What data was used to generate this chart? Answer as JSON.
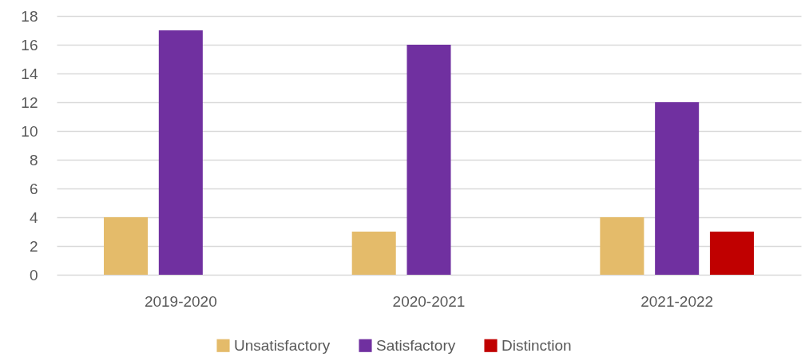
{
  "chart_data": {
    "type": "bar",
    "categories": [
      "2019-2020",
      "2020-2021",
      "2021-2022"
    ],
    "series": [
      {
        "name": "Unsatisfactory",
        "color": "#e4bb6a",
        "values": [
          4,
          3,
          4
        ]
      },
      {
        "name": "Satisfactory",
        "color": "#7030a0",
        "values": [
          17,
          16,
          12
        ]
      },
      {
        "name": "Distinction",
        "color": "#c00000",
        "values": [
          null,
          null,
          3
        ]
      }
    ],
    "ylim": [
      0,
      18
    ],
    "yticks": [
      0,
      2,
      4,
      6,
      8,
      10,
      12,
      14,
      16,
      18
    ],
    "grid": "y",
    "legend": "bottom"
  }
}
